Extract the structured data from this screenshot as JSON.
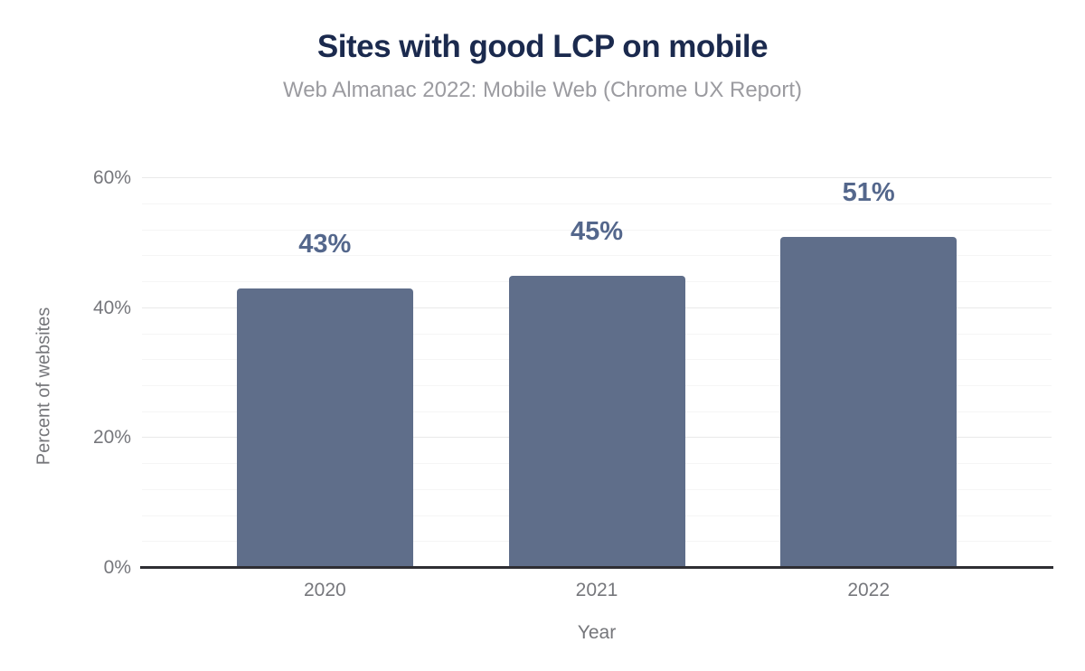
{
  "chart": {
    "title": "Sites with good LCP on mobile",
    "subtitle": "Web Almanac 2022: Mobile Web (Chrome UX Report)"
  },
  "chart_data": {
    "type": "bar",
    "title": "Sites with good LCP on mobile",
    "subtitle": "Web Almanac 2022: Mobile Web (Chrome UX Report)",
    "categories": [
      "2020",
      "2021",
      "2022"
    ],
    "values": [
      43,
      45,
      51
    ],
    "data_labels": [
      "43%",
      "45%",
      "51%"
    ],
    "xlabel": "Year",
    "ylabel": "Percent of websites",
    "ylim": [
      0,
      60
    ],
    "yticks": [
      0,
      20,
      40,
      60
    ],
    "ytick_labels": [
      "0%",
      "20%",
      "40%",
      "60%"
    ],
    "minor_gridline_step": 4,
    "grid": true,
    "legend": false
  },
  "colors": {
    "background": "#ffffff",
    "title": "#1b2a4e",
    "subtitle": "#9b9ba0",
    "axis_text": "#76777c",
    "bar": "#5f6e8a",
    "data_label": "#54678c",
    "major_gridline": "#e9e9e9",
    "minor_gridline": "#f5f5f5",
    "axis_line": "#2e2e33"
  }
}
